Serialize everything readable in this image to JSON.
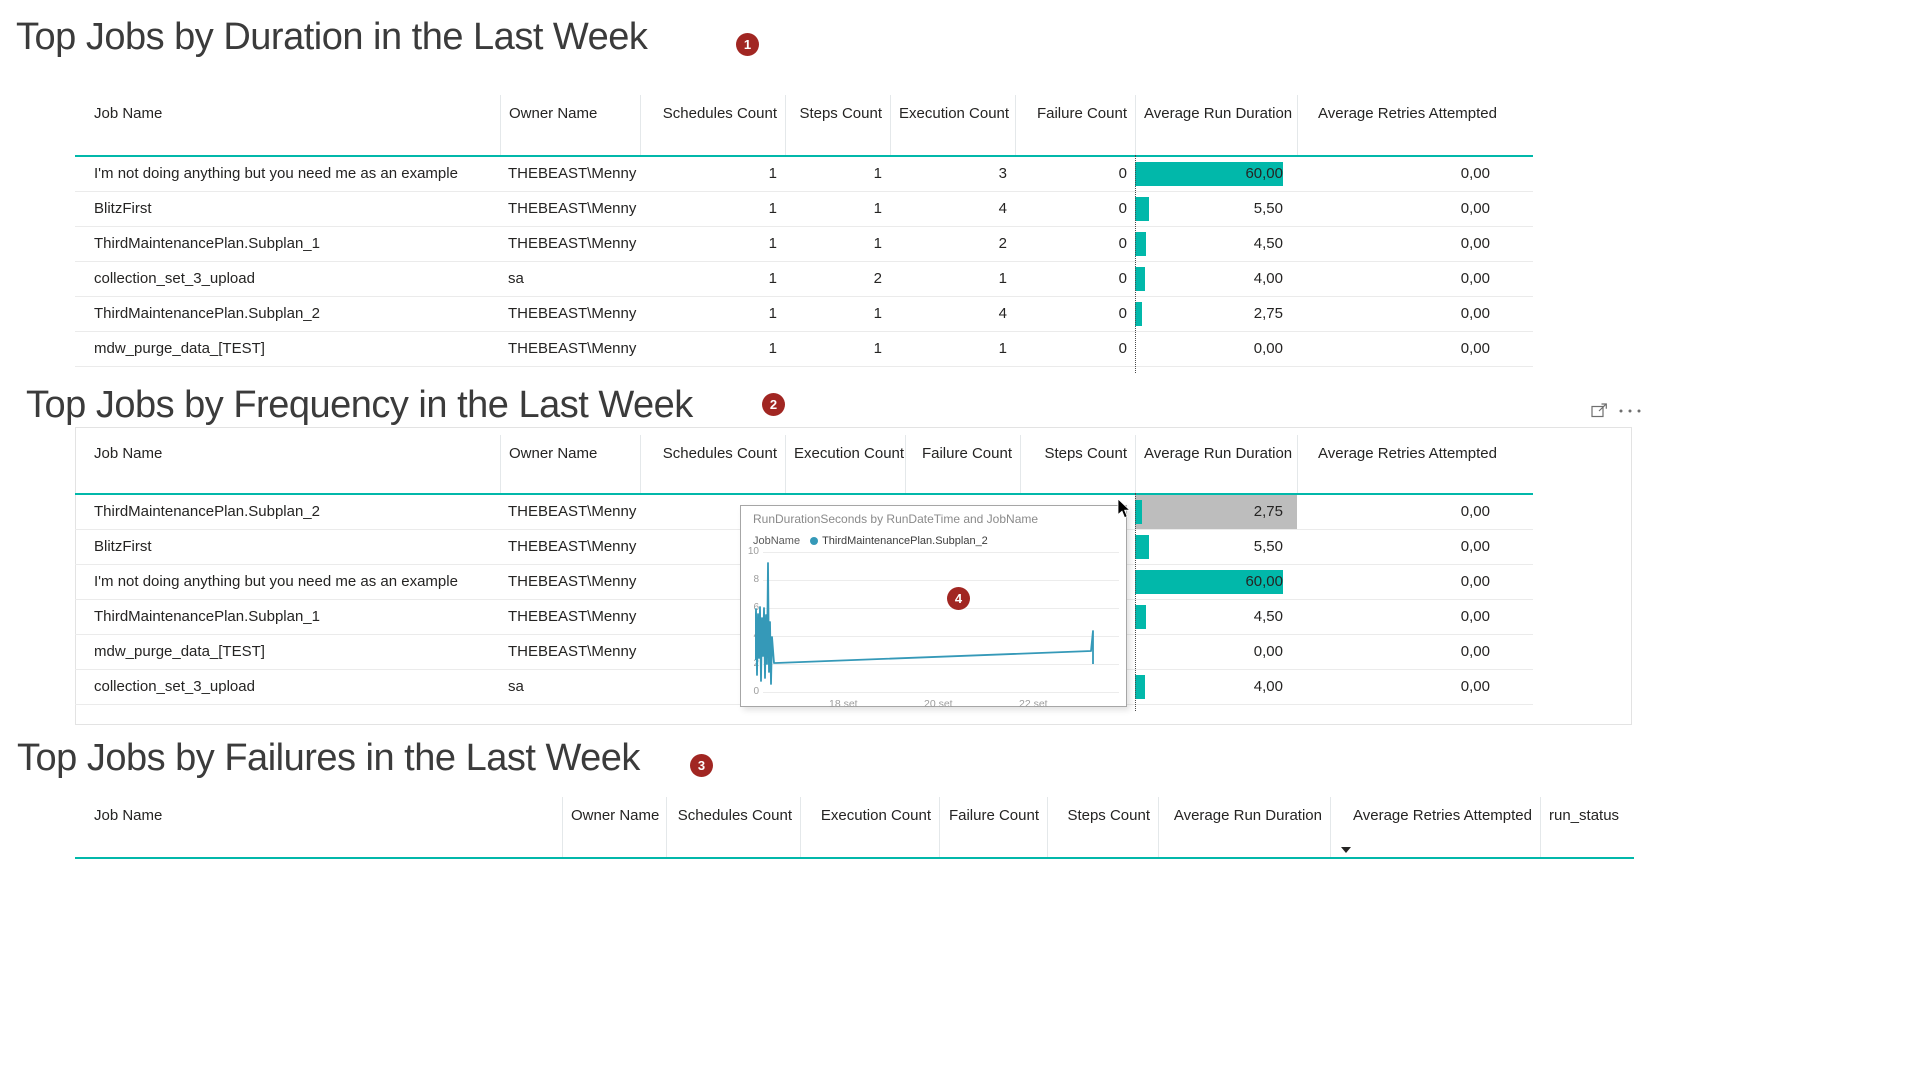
{
  "ui": {
    "accent_teal": "#01B8AA",
    "highlight_gray": "#BDBDBD",
    "badge_red": "#A12622",
    "tooltip_line_blue": "#3599B8"
  },
  "sections": [
    {
      "id": "duration",
      "title": "Top Jobs by Duration in the Last Week",
      "badge": "1",
      "columns": [
        "Job Name",
        "Owner Name",
        "Schedules Count",
        "Steps Count",
        "Execution Count",
        "Failure Count",
        "Average Run Duration",
        "Average Retries Attempted"
      ],
      "bar_max": 60,
      "rows": [
        {
          "cells": [
            "I'm not doing anything but you need me as an example",
            "THEBEAST\\Menny",
            "1",
            "1",
            "3",
            "0",
            "60,00",
            "0,00"
          ],
          "bar": 60
        },
        {
          "cells": [
            "BlitzFirst",
            "THEBEAST\\Menny",
            "1",
            "1",
            "4",
            "0",
            "5,50",
            "0,00"
          ],
          "bar": 5.5
        },
        {
          "cells": [
            "ThirdMaintenancePlan.Subplan_1",
            "THEBEAST\\Menny",
            "1",
            "1",
            "2",
            "0",
            "4,50",
            "0,00"
          ],
          "bar": 4.5
        },
        {
          "cells": [
            "collection_set_3_upload",
            "sa",
            "1",
            "2",
            "1",
            "0",
            "4,00",
            "0,00"
          ],
          "bar": 4
        },
        {
          "cells": [
            "ThirdMaintenancePlan.Subplan_2",
            "THEBEAST\\Menny",
            "1",
            "1",
            "4",
            "0",
            "2,75",
            "0,00"
          ],
          "bar": 2.75
        },
        {
          "cells": [
            "mdw_purge_data_[TEST]",
            "THEBEAST\\Menny",
            "1",
            "1",
            "1",
            "0",
            "0,00",
            "0,00"
          ],
          "bar": 0
        }
      ]
    },
    {
      "id": "frequency",
      "title": "Top Jobs by Frequency in the Last Week",
      "badge": "2",
      "columns": [
        "Job Name",
        "Owner Name",
        "Schedules Count",
        "Execution Count",
        "Failure Count",
        "Steps Count",
        "Average Run Duration",
        "Average Retries Attempted"
      ],
      "bar_max": 60,
      "rows": [
        {
          "cells": [
            "ThirdMaintenancePlan.Subplan_2",
            "THEBEAST\\Menny",
            "",
            "",
            "",
            "",
            "2,75",
            "0,00"
          ],
          "bar": 2.75,
          "highlight": true
        },
        {
          "cells": [
            "BlitzFirst",
            "THEBEAST\\Menny",
            "",
            "",
            "",
            "",
            "5,50",
            "0,00"
          ],
          "bar": 5.5
        },
        {
          "cells": [
            "I'm not doing anything but you need me as an example",
            "THEBEAST\\Menny",
            "",
            "",
            "",
            "",
            "60,00",
            "0,00"
          ],
          "bar": 60
        },
        {
          "cells": [
            "ThirdMaintenancePlan.Subplan_1",
            "THEBEAST\\Menny",
            "",
            "",
            "",
            "",
            "4,50",
            "0,00"
          ],
          "bar": 4.5
        },
        {
          "cells": [
            "mdw_purge_data_[TEST]",
            "THEBEAST\\Menny",
            "",
            "",
            "",
            "",
            "0,00",
            "0,00"
          ],
          "bar": 0
        },
        {
          "cells": [
            "collection_set_3_upload",
            "sa",
            "",
            "",
            "",
            "",
            "4,00",
            "0,00"
          ],
          "bar": 4
        }
      ],
      "note": "middle value cells are obscured by the tooltip overlay in the screenshot",
      "actions": {
        "focus_mode_icon": "focus-mode",
        "more_options_icon": "more-options"
      }
    },
    {
      "id": "failures",
      "title": "Top Jobs by Failures in the Last Week",
      "badge": "3",
      "columns": [
        "Job Name",
        "Owner Name",
        "Schedules Count",
        "Execution Count",
        "Failure Count",
        "Steps Count",
        "Average Run Duration",
        "Average Retries Attempted",
        "run_status"
      ],
      "sorted_column": "Average Retries Attempted",
      "sort_direction": "descending",
      "rows": []
    }
  ],
  "tooltip": {
    "badge": "4",
    "title": "RunDurationSeconds by RunDateTime and JobName",
    "legend_label": "JobName",
    "legend_series": "ThirdMaintenancePlan.Subplan_2",
    "chart_data": {
      "type": "line",
      "series": [
        {
          "name": "ThirdMaintenancePlan.Subplan_2"
        }
      ],
      "ylim": [
        0,
        10
      ],
      "y_ticks": [
        "10",
        "8",
        "6",
        "4",
        "2",
        "0"
      ],
      "x_ticks": [
        "18 set",
        "20 set",
        "22 set"
      ],
      "grid": true,
      "legend_position": "top",
      "shape": {
        "spike_cluster": {
          "x_range": [
            "16 set",
            "17 set"
          ],
          "y_min": 0.5,
          "y_max": 9.2
        },
        "trend": [
          {
            "x": "17 set",
            "y": 2.0
          },
          {
            "x": "23 set",
            "y": 3.0
          }
        ],
        "final_spike": {
          "x": "23 set",
          "y_low": 2.0,
          "y_high": 4.35
        }
      }
    }
  }
}
